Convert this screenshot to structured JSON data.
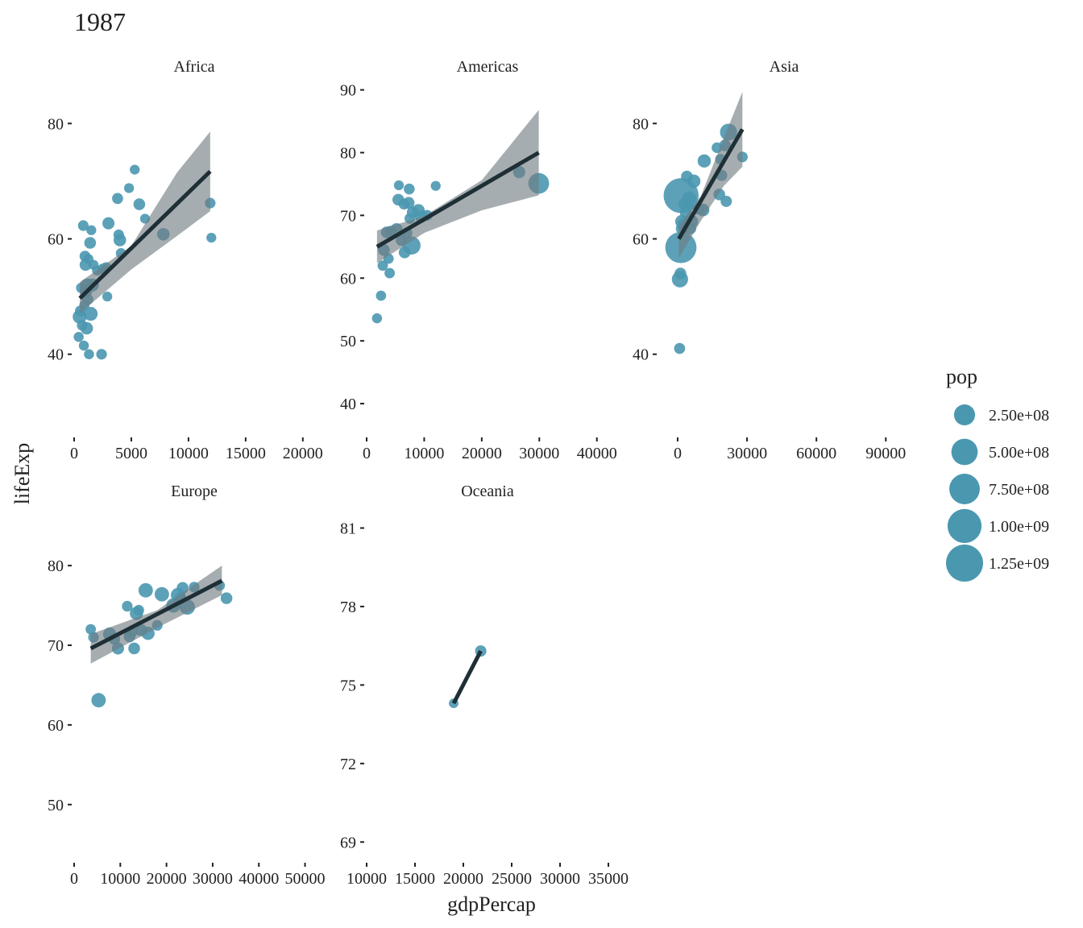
{
  "title": "1987",
  "x_axis_title": "gdpPercap",
  "y_axis_title": "lifeExp",
  "legend": {
    "title": "pop",
    "entries": [
      {
        "label": "2.50e+08",
        "value": 250000000
      },
      {
        "label": "5.00e+08",
        "value": 500000000
      },
      {
        "label": "7.50e+08",
        "value": 750000000
      },
      {
        "label": "1.00e+09",
        "value": 1000000000
      },
      {
        "label": "1.25e+09",
        "value": 1250000000
      }
    ]
  },
  "colors": {
    "point": "#4a97b0",
    "line": "#1f2f36",
    "ribbon": "#6f7b80",
    "tick": "#222222"
  },
  "chart_data": [
    {
      "type": "scatter",
      "panel": "Africa",
      "xlim": [
        0,
        21000
      ],
      "ylim": [
        26,
        88
      ],
      "xticks": [
        0,
        5000,
        10000,
        15000,
        20000
      ],
      "xtick_labels": [
        "0",
        "5000",
        "10000",
        "15000",
        "20000"
      ],
      "yticks": [
        40,
        60,
        80
      ],
      "ytick_labels": [
        "40",
        "60",
        "80"
      ],
      "points": [
        [
          400,
          43,
          6000000
        ],
        [
          480,
          46.5,
          50000000
        ],
        [
          550,
          47.5,
          12000000
        ],
        [
          620,
          51.5,
          8000000
        ],
        [
          700,
          45,
          9000000
        ],
        [
          800,
          62.3,
          10000000
        ],
        [
          850,
          41.5,
          6000000
        ],
        [
          900,
          48.5,
          7000000
        ],
        [
          950,
          57,
          12000000
        ],
        [
          1000,
          55.5,
          22000000
        ],
        [
          1050,
          51,
          30000000
        ],
        [
          1100,
          44.5,
          30000000
        ],
        [
          1150,
          52,
          40000000
        ],
        [
          1200,
          49.5,
          13000000
        ],
        [
          1250,
          56.5,
          6000000
        ],
        [
          1300,
          40,
          6000000
        ],
        [
          1400,
          59.3,
          20000000
        ],
        [
          1450,
          47,
          50000000
        ],
        [
          1500,
          61.5,
          5000000
        ],
        [
          1600,
          52,
          35000000
        ],
        [
          1700,
          55.5,
          5000000
        ],
        [
          2000,
          54.5,
          5000000
        ],
        [
          2400,
          40,
          10000000
        ],
        [
          2500,
          54.8,
          9000000
        ],
        [
          2800,
          55,
          12000000
        ],
        [
          2900,
          50,
          5000000
        ],
        [
          3000,
          62.7,
          25000000
        ],
        [
          3800,
          67,
          13000000
        ],
        [
          3900,
          60.7,
          10000000
        ],
        [
          4000,
          59.8,
          30000000
        ],
        [
          4100,
          57.5,
          8000000
        ],
        [
          4800,
          68.8,
          5000000
        ],
        [
          5300,
          72,
          5000000
        ],
        [
          5700,
          66,
          20000000
        ],
        [
          6200,
          63.5,
          5000000
        ],
        [
          7800,
          60.8,
          30000000
        ],
        [
          11900,
          66.2,
          10000000
        ],
        [
          12000,
          60.2,
          5000000
        ]
      ],
      "fit": {
        "x0": 500,
        "y0": 49.7,
        "x1": 11900,
        "y1": 71.7
      },
      "ribbon": {
        "upper": [
          [
            500,
            52.5
          ],
          [
            5000,
            58.8
          ],
          [
            9000,
            71.5
          ],
          [
            11900,
            78.6
          ]
        ],
        "lower": [
          [
            500,
            47.1
          ],
          [
            5000,
            54.7
          ],
          [
            9000,
            60.5
          ],
          [
            11900,
            64.8
          ]
        ]
      }
    },
    {
      "type": "scatter",
      "panel": "Americas",
      "xlim": [
        0,
        42000
      ],
      "ylim": [
        35,
        92
      ],
      "xticks": [
        0,
        10000,
        20000,
        30000,
        40000
      ],
      "xtick_labels": [
        "0",
        "10000",
        "20000",
        "30000",
        "40000"
      ],
      "yticks": [
        40,
        50,
        60,
        70,
        80,
        90
      ],
      "ytick_labels": [
        "40",
        "50",
        "60",
        "70",
        "80",
        "90"
      ],
      "points": [
        [
          1800,
          53.6,
          6000000
        ],
        [
          2500,
          57.2,
          7000000
        ],
        [
          2800,
          62,
          8000000
        ],
        [
          3000,
          64.5,
          20000000
        ],
        [
          3500,
          67.3,
          20000000
        ],
        [
          3800,
          63.1,
          8000000
        ],
        [
          4000,
          60.8,
          8000000
        ],
        [
          4200,
          67.5,
          10000000
        ],
        [
          5200,
          67.8,
          25000000
        ],
        [
          5500,
          72.5,
          20000000
        ],
        [
          5600,
          74.8,
          5000000
        ],
        [
          6000,
          66,
          12000000
        ],
        [
          6500,
          71.8,
          12000000
        ],
        [
          6600,
          64.1,
          20000000
        ],
        [
          7000,
          67.2,
          12000000
        ],
        [
          7300,
          72,
          20000000
        ],
        [
          7400,
          74.2,
          12000000
        ],
        [
          7500,
          69.5,
          10000000
        ],
        [
          7800,
          65.2,
          150000000
        ],
        [
          8000,
          70.5,
          20000000
        ],
        [
          9000,
          70.8,
          30000000
        ],
        [
          9500,
          69.8,
          30000000
        ],
        [
          10500,
          70,
          12000000
        ],
        [
          12000,
          74.7,
          5000000
        ],
        [
          26500,
          76.9,
          26000000
        ],
        [
          29900,
          75.1,
          240000000
        ]
      ],
      "fit": {
        "x0": 1800,
        "y0": 65,
        "x1": 29900,
        "y1": 80
      },
      "ribbon": {
        "upper": [
          [
            1800,
            67.6
          ],
          [
            10000,
            69.9
          ],
          [
            20000,
            75.6
          ],
          [
            29900,
            86.8
          ]
        ],
        "lower": [
          [
            1800,
            62.4
          ],
          [
            10000,
            67.2
          ],
          [
            20000,
            70.8
          ],
          [
            29900,
            73.2
          ]
        ]
      }
    },
    {
      "type": "scatter",
      "panel": "Asia",
      "xlim": [
        -8000,
        100000
      ],
      "ylim": [
        26,
        88
      ],
      "xticks": [
        0,
        30000,
        60000,
        90000
      ],
      "xtick_labels": [
        "0",
        "30000",
        "60000",
        "90000"
      ],
      "yticks": [
        40,
        60,
        80
      ],
      "ytick_labels": [
        "40",
        "60",
        "80"
      ],
      "points": [
        [
          850,
          41,
          13000000
        ],
        [
          1000,
          53,
          100000000
        ],
        [
          1200,
          54,
          20000000
        ],
        [
          1400,
          58.5,
          800000000
        ],
        [
          1500,
          67.5,
          1080000000
        ],
        [
          1800,
          63,
          40000000
        ],
        [
          2000,
          61.8,
          35000000
        ],
        [
          2500,
          62.5,
          30000000
        ],
        [
          3000,
          66,
          30000000
        ],
        [
          3500,
          64.5,
          20000000
        ],
        [
          4000,
          70.8,
          20000000
        ],
        [
          4500,
          65.8,
          25000000
        ],
        [
          5000,
          67,
          60000000
        ],
        [
          5500,
          61.8,
          20000000
        ],
        [
          6000,
          63,
          40000000
        ],
        [
          7000,
          70,
          40000000
        ],
        [
          9000,
          65.2,
          15000000
        ],
        [
          11000,
          65,
          30000000
        ],
        [
          11500,
          73.5,
          40000000
        ],
        [
          17000,
          75.8,
          10000000
        ],
        [
          18000,
          67.7,
          20000000
        ],
        [
          18500,
          73.8,
          10000000
        ],
        [
          19000,
          71,
          15000000
        ],
        [
          20500,
          76.2,
          20000000
        ],
        [
          21000,
          66.5,
          15000000
        ],
        [
          22000,
          78.5,
          120000000
        ],
        [
          28000,
          74.2,
          10000000
        ]
      ],
      "fit": {
        "x0": 500,
        "y0": 60,
        "x1": 28000,
        "y1": 79
      },
      "ribbon": {
        "upper": [
          [
            500,
            62.3
          ],
          [
            10000,
            67.4
          ],
          [
            20000,
            77.5
          ],
          [
            28000,
            85.5
          ]
        ],
        "lower": [
          [
            500,
            56.7
          ],
          [
            10000,
            63.1
          ],
          [
            20000,
            69.2
          ],
          [
            28000,
            72.5
          ]
        ]
      }
    },
    {
      "type": "scatter",
      "panel": "Europe",
      "xlim": [
        0,
        52000
      ],
      "ylim": [
        43,
        88
      ],
      "xticks": [
        0,
        10000,
        20000,
        30000,
        40000,
        50000
      ],
      "xtick_labels": [
        "0",
        "10000",
        "20000",
        "30000",
        "40000",
        "50000"
      ],
      "yticks": [
        50,
        60,
        70,
        80
      ],
      "ytick_labels": [
        "50",
        "60",
        "70",
        "80"
      ],
      "points": [
        [
          3600,
          72,
          8000000
        ],
        [
          4200,
          71,
          10000000
        ],
        [
          5300,
          63.1,
          60000000
        ],
        [
          7700,
          71.4,
          40000000
        ],
        [
          8700,
          70.8,
          20000000
        ],
        [
          9500,
          69.6,
          25000000
        ],
        [
          11500,
          74.9,
          10000000
        ],
        [
          12000,
          71.1,
          20000000
        ],
        [
          12500,
          71.6,
          10000000
        ],
        [
          13000,
          69.6,
          20000000
        ],
        [
          13500,
          74,
          40000000
        ],
        [
          14000,
          74.4,
          10000000
        ],
        [
          14500,
          71.9,
          25000000
        ],
        [
          15500,
          76.9,
          60000000
        ],
        [
          16000,
          71.5,
          40000000
        ],
        [
          18000,
          72.5,
          10000000
        ],
        [
          19000,
          76.4,
          60000000
        ],
        [
          21500,
          75,
          60000000
        ],
        [
          22500,
          76.3,
          60000000
        ],
        [
          23000,
          75.9,
          20000000
        ],
        [
          23500,
          77.2,
          20000000
        ],
        [
          24500,
          74.8,
          80000000
        ],
        [
          26000,
          77.3,
          10000000
        ],
        [
          31500,
          77.5,
          10000000
        ],
        [
          33000,
          75.9,
          20000000
        ]
      ],
      "fit": {
        "x0": 3600,
        "y0": 69.6,
        "x1": 32000,
        "y1": 78.1
      },
      "ribbon": {
        "upper": [
          [
            3600,
            71.4
          ],
          [
            18000,
            74.4
          ],
          [
            32000,
            80
          ]
        ],
        "lower": [
          [
            3600,
            67.7
          ],
          [
            18000,
            72.2
          ],
          [
            32000,
            76.3
          ]
        ]
      }
    },
    {
      "type": "scatter",
      "panel": "Oceania",
      "xlim": [
        10000,
        35000
      ],
      "ylim": [
        68.3,
        82
      ],
      "xticks": [
        10000,
        15000,
        20000,
        25000,
        30000,
        35000
      ],
      "xtick_labels": [
        "10000",
        "15000",
        "20000",
        "25000",
        "30000",
        "35000"
      ],
      "yticks": [
        69,
        72,
        75,
        78,
        81
      ],
      "ytick_labels": [
        "69",
        "72",
        "75",
        "78",
        "81"
      ],
      "points": [
        [
          19000,
          74.3,
          3300000
        ],
        [
          21800,
          76.3,
          16000000
        ]
      ],
      "fit": {
        "x0": 19000,
        "y0": 74.3,
        "x1": 21800,
        "y1": 76.3
      },
      "ribbon": {
        "upper": [],
        "lower": []
      }
    }
  ]
}
